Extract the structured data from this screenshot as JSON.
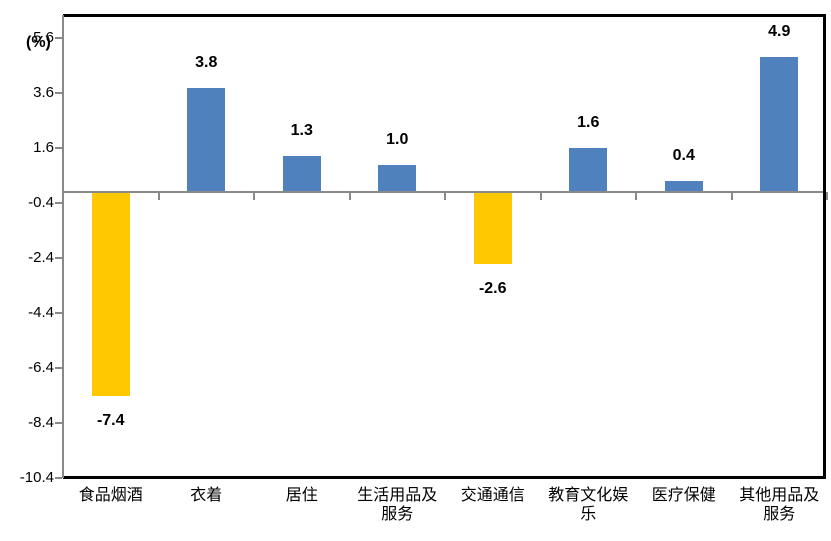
{
  "chart_data": {
    "type": "bar",
    "title": "",
    "xlabel": "",
    "ylabel": "(%)",
    "categories": [
      "食品烟酒",
      "衣着",
      "居住",
      "生活用品及服务",
      "交通通信",
      "教育文化娱乐",
      "医疗保健",
      "其他用品及服务"
    ],
    "values": [
      -7.4,
      3.8,
      1.3,
      1.0,
      -2.6,
      1.6,
      0.4,
      4.9
    ],
    "value_labels": [
      "-7.4",
      "3.8",
      "1.3",
      "1.0",
      "-2.6",
      "1.6",
      "0.4",
      "4.9"
    ],
    "y_ticks": [
      5.6,
      3.6,
      1.6,
      -0.4,
      -2.4,
      -4.4,
      -6.4,
      -8.4,
      -10.4
    ],
    "y_tick_labels": [
      "5.6",
      "3.6",
      "1.6",
      "-0.4",
      "-2.4",
      "-4.4",
      "-6.4",
      "-8.4",
      "-10.4"
    ],
    "ylim": [
      -10.4,
      6.4
    ],
    "grid": false,
    "legend": null,
    "colors": {
      "positive_bar": "#4F81BD",
      "negative_bar": "#FFC800",
      "axis_line": "#898989",
      "plot_border": "#000000",
      "text": "#000000"
    }
  }
}
